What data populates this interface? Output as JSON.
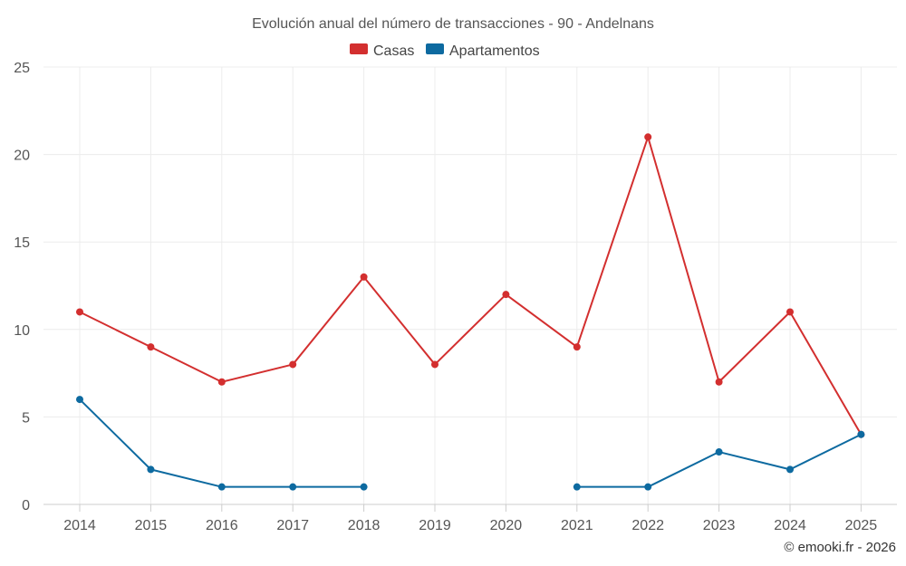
{
  "chart_data": {
    "type": "line",
    "title": "Evolución anual del número de transacciones - 90 - Andelnans",
    "categories": [
      "2014",
      "2015",
      "2016",
      "2017",
      "2018",
      "2019",
      "2020",
      "2021",
      "2022",
      "2023",
      "2024",
      "2025"
    ],
    "ylim": [
      0,
      25
    ],
    "yticks": [
      0,
      5,
      10,
      15,
      20,
      25
    ],
    "grid": true,
    "legend_position": "top-center",
    "series": [
      {
        "name": "Casas",
        "color": "#d32f2f",
        "values": [
          11,
          9,
          7,
          8,
          13,
          8,
          12,
          9,
          21,
          7,
          11,
          4
        ]
      },
      {
        "name": "Apartamentos",
        "color": "#0d6aa0",
        "values": [
          6,
          2,
          1,
          1,
          1,
          null,
          null,
          1,
          1,
          3,
          2,
          4
        ]
      }
    ]
  },
  "credit": "© emooki.fr - 2026"
}
